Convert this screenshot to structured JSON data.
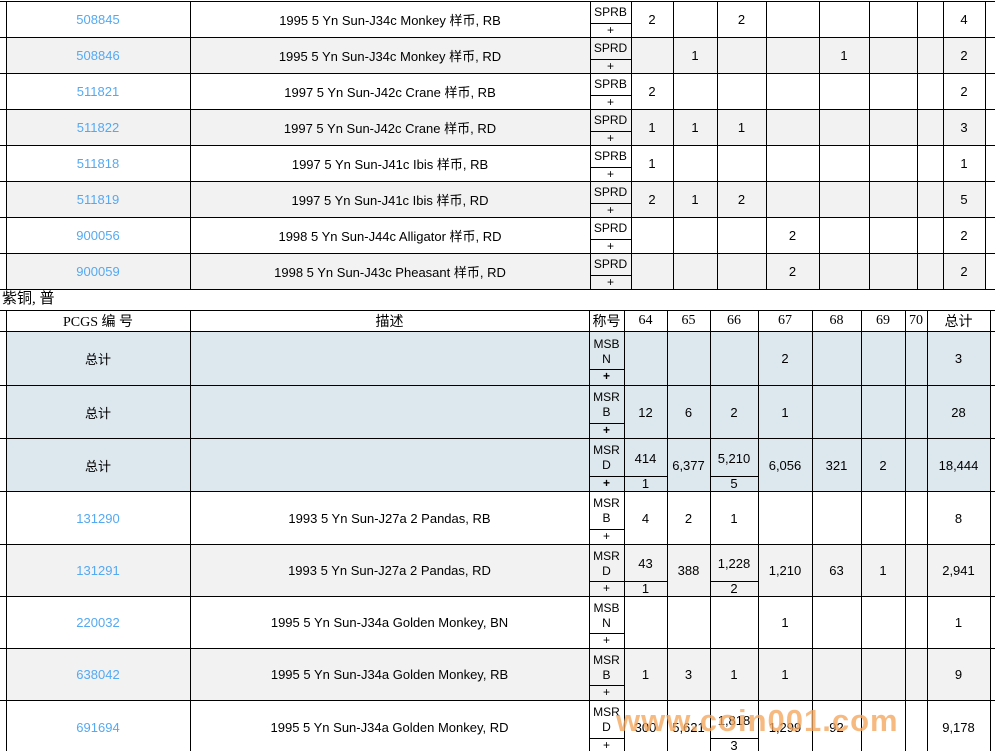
{
  "section_label": "紫铜, 普",
  "watermark": "www.coin001.com",
  "colors": {
    "link_blue": "#55a9f1",
    "row_alt_gray": "#f2f2f2",
    "total_row_blue_gray": "#dde7ee",
    "watermark_orange": "rgba(244,166,94,0.78)",
    "grid_border": "#000000"
  },
  "top_table": {
    "rows": [
      {
        "pcgs": "508845",
        "desc": "1995 5 Yn Sun-J34c Monkey 样币, RB",
        "desig": [
          "SPRB"
        ],
        "plus": "+",
        "counts": [
          "2",
          "",
          "2",
          "",
          "",
          "",
          "",
          "4"
        ]
      },
      {
        "pcgs": "508846",
        "desc": "1995 5 Yn Sun-J34c Monkey 样币, RD",
        "desig": [
          "SPRD"
        ],
        "plus": "+",
        "counts": [
          "",
          "1",
          "",
          "",
          "1",
          "",
          "",
          "2"
        ]
      },
      {
        "pcgs": "511821",
        "desc": "1997 5 Yn Sun-J42c Crane 样币, RB",
        "desig": [
          "SPRB"
        ],
        "plus": "+",
        "counts": [
          "2",
          "",
          "",
          "",
          "",
          "",
          "",
          "2"
        ]
      },
      {
        "pcgs": "511822",
        "desc": "1997 5 Yn Sun-J42c Crane 样币, RD",
        "desig": [
          "SPRD"
        ],
        "plus": "+",
        "counts": [
          "1",
          "1",
          "1",
          "",
          "",
          "",
          "",
          "3"
        ]
      },
      {
        "pcgs": "511818",
        "desc": "1997 5 Yn Sun-J41c Ibis 样币, RB",
        "desig": [
          "SPRB"
        ],
        "plus": "+",
        "counts": [
          "1",
          "",
          "",
          "",
          "",
          "",
          "",
          "1"
        ]
      },
      {
        "pcgs": "511819",
        "desc": "1997 5 Yn Sun-J41c Ibis 样币, RD",
        "desig": [
          "SPRD"
        ],
        "plus": "+",
        "counts": [
          "2",
          "1",
          "2",
          "",
          "",
          "",
          "",
          "5"
        ]
      },
      {
        "pcgs": "900056",
        "desc": "1998 5 Yn Sun-J44c Alligator 样币, RD",
        "desig": [
          "SPRD"
        ],
        "plus": "+",
        "counts": [
          "",
          "",
          "",
          "2",
          "",
          "",
          "",
          "2"
        ]
      },
      {
        "pcgs": "900059",
        "desc": "1998 5 Yn Sun-J43c Pheasant 样币, RD",
        "desig": [
          "SPRD"
        ],
        "plus": "+",
        "counts": [
          "",
          "",
          "",
          "2",
          "",
          "",
          "",
          "2"
        ]
      }
    ]
  },
  "bottom_table": {
    "header": [
      "PCGS 编 号",
      "描述",
      "称号",
      "64",
      "65",
      "66",
      "67",
      "68",
      "69",
      "70",
      "总计"
    ],
    "rows": [
      {
        "pcgs": "总计",
        "is_total": true,
        "desc": "",
        "desig": [
          "MSB",
          "N"
        ],
        "plus": "+",
        "counts": [
          "",
          "",
          "",
          "2",
          "",
          "",
          "",
          "3"
        ]
      },
      {
        "pcgs": "总计",
        "is_total": true,
        "desc": "",
        "desig": [
          "MSR",
          "B"
        ],
        "plus": "+",
        "counts": [
          "12",
          "6",
          "2",
          "1",
          "",
          "",
          "",
          "28"
        ]
      },
      {
        "pcgs": "总计",
        "is_total": true,
        "desc": "",
        "desig": [
          "MSR",
          "D"
        ],
        "plus": "+",
        "counts": [
          {
            "top": "414",
            "bottom": "1"
          },
          "6,377",
          {
            "top": "5,210",
            "bottom": "5"
          },
          "6,056",
          "321",
          "2",
          "",
          "18,444"
        ]
      },
      {
        "pcgs": "131290",
        "desc": "1993 5 Yn Sun-J27a 2 Pandas, RB",
        "desig": [
          "MSR",
          "B"
        ],
        "plus": "+",
        "counts": [
          "4",
          "2",
          "1",
          "",
          "",
          "",
          "",
          "8"
        ]
      },
      {
        "pcgs": "131291",
        "desc": "1993 5 Yn Sun-J27a 2 Pandas, RD",
        "desig": [
          "MSR",
          "D"
        ],
        "plus": "+",
        "counts": [
          {
            "top": "43",
            "bottom": "1"
          },
          "388",
          {
            "top": "1,228",
            "bottom": "2"
          },
          "1,210",
          "63",
          "1",
          "",
          "2,941"
        ]
      },
      {
        "pcgs": "220032",
        "desc": "1995 5 Yn Sun-J34a Golden Monkey, BN",
        "desig": [
          "MSB",
          "N"
        ],
        "plus": "+",
        "counts": [
          "",
          "",
          "",
          "1",
          "",
          "",
          "",
          "1"
        ]
      },
      {
        "pcgs": "638042",
        "desc": "1995 5 Yn Sun-J34a Golden Monkey, RB",
        "desig": [
          "MSR",
          "B"
        ],
        "plus": "+",
        "counts": [
          "1",
          "3",
          "1",
          "1",
          "",
          "",
          "",
          "9"
        ]
      },
      {
        "pcgs": "691694",
        "desc": "1995 5 Yn Sun-J34a Golden Monkey, RD",
        "desig": [
          "MSR",
          "D"
        ],
        "plus": "+",
        "counts": [
          "300",
          "5,621",
          {
            "top": "1,818",
            "bottom": "3"
          },
          "1,299",
          "92",
          "",
          "",
          "9,178"
        ]
      }
    ]
  }
}
